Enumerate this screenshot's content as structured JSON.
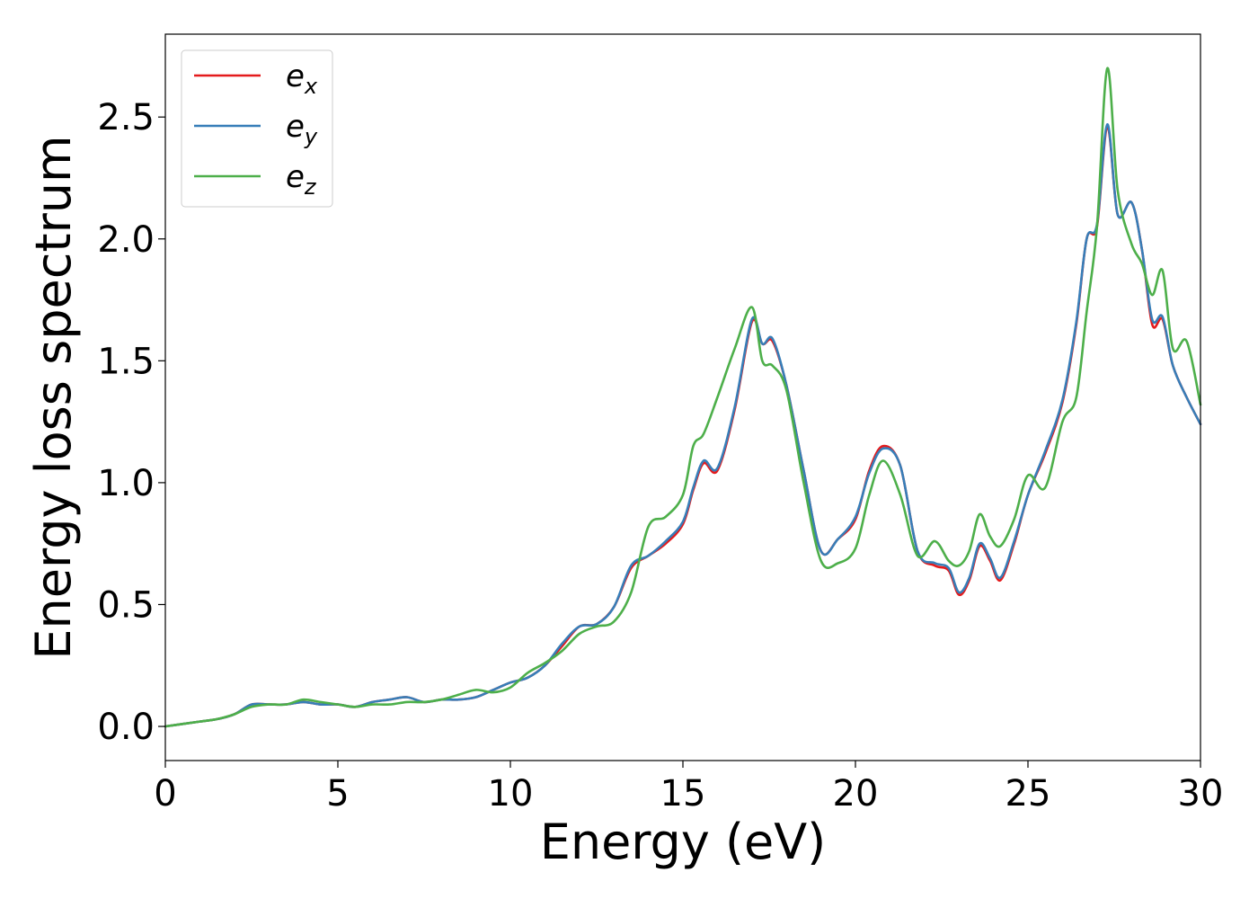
{
  "chart_data": {
    "type": "line",
    "xlabel": "Energy (eV)",
    "ylabel": "Energy loss spectrum",
    "xlim": [
      0,
      30
    ],
    "ylim": [
      -0.14,
      2.84
    ],
    "xticks": [
      "0",
      "5",
      "10",
      "15",
      "20",
      "25",
      "30"
    ],
    "yticks": [
      "0.0",
      "0.5",
      "1.0",
      "1.5",
      "2.0",
      "2.5"
    ],
    "grid": false,
    "legend_position": "top-left",
    "series": [
      {
        "name": "e_x",
        "legend_base": "e",
        "legend_sub": "x",
        "color": "#e41a1c",
        "x": [
          0,
          0.5,
          1,
          1.5,
          2,
          2.5,
          3,
          3.5,
          4,
          4.5,
          5,
          5.5,
          6,
          6.5,
          7,
          7.5,
          8,
          8.5,
          9,
          9.5,
          10,
          10.5,
          11,
          11.5,
          12,
          12.5,
          13,
          13.5,
          14,
          14.5,
          15,
          15.3,
          15.6,
          16,
          16.5,
          17,
          17.3,
          17.6,
          18,
          18.5,
          19,
          19.5,
          20,
          20.4,
          20.8,
          21.3,
          21.8,
          22.3,
          22.7,
          23,
          23.3,
          23.6,
          23.9,
          24.2,
          24.6,
          25,
          25.5,
          26,
          26.4,
          26.7,
          27,
          27.3,
          27.6,
          28,
          28.3,
          28.6,
          28.9,
          29.2,
          29.6,
          30
        ],
        "y": [
          0.0,
          0.01,
          0.02,
          0.03,
          0.05,
          0.09,
          0.09,
          0.09,
          0.1,
          0.09,
          0.09,
          0.08,
          0.1,
          0.11,
          0.12,
          0.1,
          0.11,
          0.11,
          0.12,
          0.15,
          0.18,
          0.2,
          0.25,
          0.33,
          0.41,
          0.42,
          0.49,
          0.65,
          0.7,
          0.75,
          0.83,
          0.97,
          1.08,
          1.05,
          1.3,
          1.66,
          1.57,
          1.58,
          1.4,
          1.05,
          0.72,
          0.77,
          0.85,
          1.05,
          1.15,
          1.07,
          0.72,
          0.66,
          0.64,
          0.54,
          0.6,
          0.74,
          0.68,
          0.6,
          0.75,
          0.95,
          1.12,
          1.33,
          1.65,
          2.0,
          2.05,
          2.46,
          2.1,
          2.15,
          1.96,
          1.65,
          1.67,
          1.48,
          1.35,
          1.24
        ]
      },
      {
        "name": "e_y",
        "legend_base": "e",
        "legend_sub": "y",
        "color": "#377eb8",
        "x": [
          0,
          0.5,
          1,
          1.5,
          2,
          2.5,
          3,
          3.5,
          4,
          4.5,
          5,
          5.5,
          6,
          6.5,
          7,
          7.5,
          8,
          8.5,
          9,
          9.5,
          10,
          10.5,
          11,
          11.5,
          12,
          12.5,
          13,
          13.5,
          14,
          14.5,
          15,
          15.3,
          15.6,
          16,
          16.5,
          17,
          17.3,
          17.6,
          18,
          18.5,
          19,
          19.5,
          20,
          20.4,
          20.8,
          21.3,
          21.8,
          22.3,
          22.7,
          23,
          23.3,
          23.6,
          23.9,
          24.2,
          24.6,
          25,
          25.5,
          26,
          26.4,
          26.7,
          27,
          27.3,
          27.6,
          28,
          28.3,
          28.6,
          28.9,
          29.2,
          29.6,
          30
        ],
        "y": [
          0.0,
          0.01,
          0.02,
          0.03,
          0.05,
          0.09,
          0.09,
          0.09,
          0.1,
          0.09,
          0.09,
          0.08,
          0.1,
          0.11,
          0.12,
          0.1,
          0.11,
          0.11,
          0.12,
          0.15,
          0.18,
          0.2,
          0.25,
          0.34,
          0.41,
          0.42,
          0.49,
          0.66,
          0.7,
          0.76,
          0.84,
          0.98,
          1.09,
          1.06,
          1.31,
          1.67,
          1.57,
          1.59,
          1.4,
          1.05,
          0.72,
          0.77,
          0.86,
          1.04,
          1.14,
          1.07,
          0.72,
          0.67,
          0.65,
          0.55,
          0.61,
          0.75,
          0.69,
          0.61,
          0.76,
          0.95,
          1.13,
          1.34,
          1.66,
          2.0,
          2.06,
          2.47,
          2.1,
          2.15,
          1.96,
          1.67,
          1.68,
          1.48,
          1.35,
          1.24
        ]
      },
      {
        "name": "e_z",
        "legend_base": "e",
        "legend_sub": "z",
        "color": "#4daf4a",
        "x": [
          0,
          0.5,
          1,
          1.5,
          2,
          2.5,
          3,
          3.5,
          4,
          4.5,
          5,
          5.5,
          6,
          6.5,
          7,
          7.5,
          8,
          8.5,
          9,
          9.5,
          10,
          10.5,
          11,
          11.5,
          12,
          12.5,
          13,
          13.5,
          14,
          14.5,
          15,
          15.3,
          15.6,
          16,
          16.5,
          17,
          17.3,
          17.6,
          18,
          18.5,
          19,
          19.5,
          20,
          20.4,
          20.8,
          21.3,
          21.8,
          22.3,
          22.7,
          23,
          23.3,
          23.6,
          23.9,
          24.2,
          24.6,
          25,
          25.5,
          26,
          26.4,
          26.7,
          27,
          27.3,
          27.6,
          28,
          28.3,
          28.6,
          28.9,
          29.2,
          29.6,
          30
        ],
        "y": [
          0.0,
          0.01,
          0.02,
          0.03,
          0.05,
          0.08,
          0.09,
          0.09,
          0.11,
          0.1,
          0.09,
          0.08,
          0.09,
          0.09,
          0.1,
          0.1,
          0.11,
          0.13,
          0.15,
          0.14,
          0.16,
          0.22,
          0.26,
          0.31,
          0.38,
          0.41,
          0.43,
          0.55,
          0.82,
          0.86,
          0.95,
          1.15,
          1.2,
          1.35,
          1.55,
          1.72,
          1.5,
          1.48,
          1.38,
          1.0,
          0.68,
          0.67,
          0.73,
          0.95,
          1.09,
          0.95,
          0.7,
          0.76,
          0.68,
          0.66,
          0.72,
          0.87,
          0.78,
          0.74,
          0.85,
          1.03,
          0.98,
          1.25,
          1.35,
          1.7,
          2.05,
          2.7,
          2.2,
          1.98,
          1.9,
          1.77,
          1.87,
          1.55,
          1.58,
          1.32
        ]
      }
    ]
  }
}
